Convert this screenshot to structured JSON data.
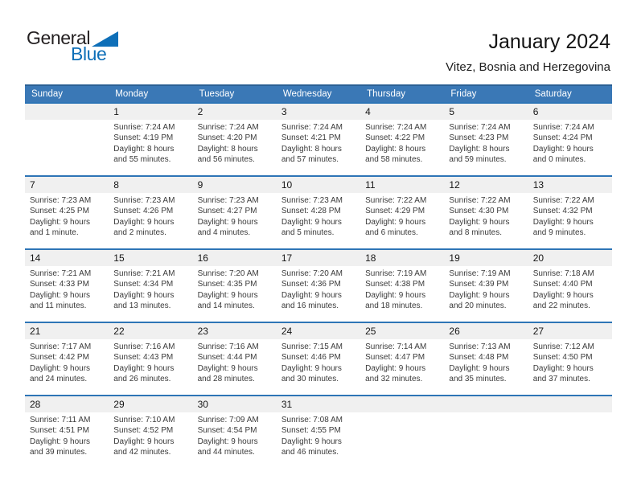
{
  "logo": {
    "part1": "General",
    "part2": "Blue"
  },
  "header": {
    "title": "January 2024",
    "location": "Vitez, Bosnia and Herzegovina"
  },
  "colors": {
    "header_blue": "#3a78b6",
    "header_blue_dark": "#2b6094",
    "divider_blue": "#2e75b6",
    "strip_gray": "#f0f0f0",
    "logo_blue": "#0e6fb8"
  },
  "calendar": {
    "day_headers": [
      "Sunday",
      "Monday",
      "Tuesday",
      "Wednesday",
      "Thursday",
      "Friday",
      "Saturday"
    ],
    "weeks": [
      [
        null,
        {
          "date": "1",
          "sunrise": "Sunrise: 7:24 AM",
          "sunset": "Sunset: 4:19 PM",
          "daylight1": "Daylight: 8 hours",
          "daylight2": "and 55 minutes."
        },
        {
          "date": "2",
          "sunrise": "Sunrise: 7:24 AM",
          "sunset": "Sunset: 4:20 PM",
          "daylight1": "Daylight: 8 hours",
          "daylight2": "and 56 minutes."
        },
        {
          "date": "3",
          "sunrise": "Sunrise: 7:24 AM",
          "sunset": "Sunset: 4:21 PM",
          "daylight1": "Daylight: 8 hours",
          "daylight2": "and 57 minutes."
        },
        {
          "date": "4",
          "sunrise": "Sunrise: 7:24 AM",
          "sunset": "Sunset: 4:22 PM",
          "daylight1": "Daylight: 8 hours",
          "daylight2": "and 58 minutes."
        },
        {
          "date": "5",
          "sunrise": "Sunrise: 7:24 AM",
          "sunset": "Sunset: 4:23 PM",
          "daylight1": "Daylight: 8 hours",
          "daylight2": "and 59 minutes."
        },
        {
          "date": "6",
          "sunrise": "Sunrise: 7:24 AM",
          "sunset": "Sunset: 4:24 PM",
          "daylight1": "Daylight: 9 hours",
          "daylight2": "and 0 minutes."
        }
      ],
      [
        {
          "date": "7",
          "sunrise": "Sunrise: 7:23 AM",
          "sunset": "Sunset: 4:25 PM",
          "daylight1": "Daylight: 9 hours",
          "daylight2": "and 1 minute."
        },
        {
          "date": "8",
          "sunrise": "Sunrise: 7:23 AM",
          "sunset": "Sunset: 4:26 PM",
          "daylight1": "Daylight: 9 hours",
          "daylight2": "and 2 minutes."
        },
        {
          "date": "9",
          "sunrise": "Sunrise: 7:23 AM",
          "sunset": "Sunset: 4:27 PM",
          "daylight1": "Daylight: 9 hours",
          "daylight2": "and 4 minutes."
        },
        {
          "date": "10",
          "sunrise": "Sunrise: 7:23 AM",
          "sunset": "Sunset: 4:28 PM",
          "daylight1": "Daylight: 9 hours",
          "daylight2": "and 5 minutes."
        },
        {
          "date": "11",
          "sunrise": "Sunrise: 7:22 AM",
          "sunset": "Sunset: 4:29 PM",
          "daylight1": "Daylight: 9 hours",
          "daylight2": "and 6 minutes."
        },
        {
          "date": "12",
          "sunrise": "Sunrise: 7:22 AM",
          "sunset": "Sunset: 4:30 PM",
          "daylight1": "Daylight: 9 hours",
          "daylight2": "and 8 minutes."
        },
        {
          "date": "13",
          "sunrise": "Sunrise: 7:22 AM",
          "sunset": "Sunset: 4:32 PM",
          "daylight1": "Daylight: 9 hours",
          "daylight2": "and 9 minutes."
        }
      ],
      [
        {
          "date": "14",
          "sunrise": "Sunrise: 7:21 AM",
          "sunset": "Sunset: 4:33 PM",
          "daylight1": "Daylight: 9 hours",
          "daylight2": "and 11 minutes."
        },
        {
          "date": "15",
          "sunrise": "Sunrise: 7:21 AM",
          "sunset": "Sunset: 4:34 PM",
          "daylight1": "Daylight: 9 hours",
          "daylight2": "and 13 minutes."
        },
        {
          "date": "16",
          "sunrise": "Sunrise: 7:20 AM",
          "sunset": "Sunset: 4:35 PM",
          "daylight1": "Daylight: 9 hours",
          "daylight2": "and 14 minutes."
        },
        {
          "date": "17",
          "sunrise": "Sunrise: 7:20 AM",
          "sunset": "Sunset: 4:36 PM",
          "daylight1": "Daylight: 9 hours",
          "daylight2": "and 16 minutes."
        },
        {
          "date": "18",
          "sunrise": "Sunrise: 7:19 AM",
          "sunset": "Sunset: 4:38 PM",
          "daylight1": "Daylight: 9 hours",
          "daylight2": "and 18 minutes."
        },
        {
          "date": "19",
          "sunrise": "Sunrise: 7:19 AM",
          "sunset": "Sunset: 4:39 PM",
          "daylight1": "Daylight: 9 hours",
          "daylight2": "and 20 minutes."
        },
        {
          "date": "20",
          "sunrise": "Sunrise: 7:18 AM",
          "sunset": "Sunset: 4:40 PM",
          "daylight1": "Daylight: 9 hours",
          "daylight2": "and 22 minutes."
        }
      ],
      [
        {
          "date": "21",
          "sunrise": "Sunrise: 7:17 AM",
          "sunset": "Sunset: 4:42 PM",
          "daylight1": "Daylight: 9 hours",
          "daylight2": "and 24 minutes."
        },
        {
          "date": "22",
          "sunrise": "Sunrise: 7:16 AM",
          "sunset": "Sunset: 4:43 PM",
          "daylight1": "Daylight: 9 hours",
          "daylight2": "and 26 minutes."
        },
        {
          "date": "23",
          "sunrise": "Sunrise: 7:16 AM",
          "sunset": "Sunset: 4:44 PM",
          "daylight1": "Daylight: 9 hours",
          "daylight2": "and 28 minutes."
        },
        {
          "date": "24",
          "sunrise": "Sunrise: 7:15 AM",
          "sunset": "Sunset: 4:46 PM",
          "daylight1": "Daylight: 9 hours",
          "daylight2": "and 30 minutes."
        },
        {
          "date": "25",
          "sunrise": "Sunrise: 7:14 AM",
          "sunset": "Sunset: 4:47 PM",
          "daylight1": "Daylight: 9 hours",
          "daylight2": "and 32 minutes."
        },
        {
          "date": "26",
          "sunrise": "Sunrise: 7:13 AM",
          "sunset": "Sunset: 4:48 PM",
          "daylight1": "Daylight: 9 hours",
          "daylight2": "and 35 minutes."
        },
        {
          "date": "27",
          "sunrise": "Sunrise: 7:12 AM",
          "sunset": "Sunset: 4:50 PM",
          "daylight1": "Daylight: 9 hours",
          "daylight2": "and 37 minutes."
        }
      ],
      [
        {
          "date": "28",
          "sunrise": "Sunrise: 7:11 AM",
          "sunset": "Sunset: 4:51 PM",
          "daylight1": "Daylight: 9 hours",
          "daylight2": "and 39 minutes."
        },
        {
          "date": "29",
          "sunrise": "Sunrise: 7:10 AM",
          "sunset": "Sunset: 4:52 PM",
          "daylight1": "Daylight: 9 hours",
          "daylight2": "and 42 minutes."
        },
        {
          "date": "30",
          "sunrise": "Sunrise: 7:09 AM",
          "sunset": "Sunset: 4:54 PM",
          "daylight1": "Daylight: 9 hours",
          "daylight2": "and 44 minutes."
        },
        {
          "date": "31",
          "sunrise": "Sunrise: 7:08 AM",
          "sunset": "Sunset: 4:55 PM",
          "daylight1": "Daylight: 9 hours",
          "daylight2": "and 46 minutes."
        },
        null,
        null,
        null
      ]
    ]
  }
}
